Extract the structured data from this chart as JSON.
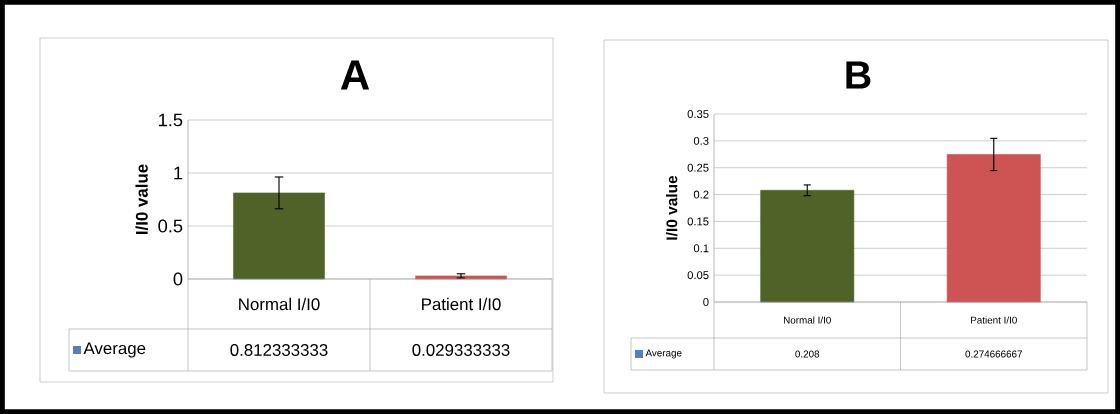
{
  "chart_data": [
    {
      "type": "bar",
      "title": "A",
      "ylabel": "I/I0 value",
      "categories": [
        "Normal I/I0",
        "Patient I/I0"
      ],
      "series": [
        {
          "name": "Average",
          "colors": [
            "#4f6228",
            "#cd5452"
          ],
          "values": [
            0.812333333,
            0.029333333
          ],
          "errors": [
            0.15,
            0.02
          ]
        }
      ],
      "ylim": [
        0,
        1.5
      ],
      "yticks": [
        0,
        0.5,
        1,
        1.5
      ],
      "grid": "y",
      "legend": "bottom",
      "data_labels": true
    },
    {
      "type": "bar",
      "title": "B",
      "ylabel": "I/I0 value",
      "categories": [
        "Normal I/I0",
        "Patient I/I0"
      ],
      "series": [
        {
          "name": "Average",
          "colors": [
            "#4f6228",
            "#cd5452"
          ],
          "values": [
            0.208,
            0.274666667
          ],
          "errors": [
            0.01,
            0.03
          ]
        }
      ],
      "ylim": [
        0,
        0.35
      ],
      "yticks": [
        0,
        0.05,
        0.1,
        0.15,
        0.2,
        0.25,
        0.3,
        0.35
      ],
      "grid": "y",
      "legend": "bottom",
      "data_labels": true
    }
  ]
}
